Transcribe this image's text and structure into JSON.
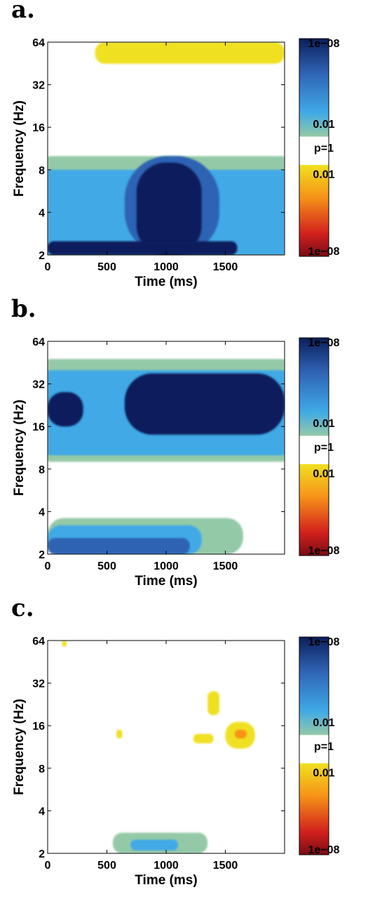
{
  "figure": {
    "panels": [
      {
        "label": "a."
      },
      {
        "label": "b."
      },
      {
        "label": "c."
      }
    ]
  },
  "colorbar": {
    "labels": [
      "1e−08",
      "0.01",
      "p=1",
      "0.01",
      "1e−08"
    ],
    "colors": {
      "dark_blue": "#0b1f5c",
      "mid_blue": "#2f63b4",
      "light_blue": "#3fa9e6",
      "green": "#94c9a7",
      "white": "#ffffff",
      "yellow": "#f0e020",
      "orange": "#f79418",
      "red": "#d2201d",
      "dark_red": "#7a0c14"
    }
  },
  "chart_data": [
    {
      "type": "heatmap",
      "title": "",
      "xlabel": "Time (ms)",
      "ylabel": "Frequency (Hz)",
      "xlim": [
        0,
        2000
      ],
      "ylim": [
        2,
        64
      ],
      "yscale": "log2",
      "xticks": [
        0,
        500,
        1000,
        1500
      ],
      "yticks": [
        2,
        4,
        8,
        16,
        32,
        64
      ],
      "colorbar": [
        "1e−08",
        "0.01",
        "p=1",
        "0.01",
        "1e−08"
      ],
      "significant_regions": [
        {
          "time": [
            0,
            2000
          ],
          "freq": [
            2,
            10
          ],
          "level": "0.01",
          "color": "green"
        },
        {
          "time": [
            0,
            2000
          ],
          "freq": [
            2,
            8
          ],
          "level": "0.001",
          "color": "light_blue"
        },
        {
          "time": [
            650,
            1450
          ],
          "freq": [
            2,
            10
          ],
          "level": "1e−5",
          "color": "mid_blue"
        },
        {
          "time": [
            750,
            1300
          ],
          "freq": [
            2,
            9
          ],
          "level": "1e−8",
          "color": "dark_blue"
        },
        {
          "time": [
            0,
            1600
          ],
          "freq": [
            2,
            2.5
          ],
          "level": "1e−8",
          "color": "dark_blue"
        },
        {
          "time": [
            400,
            2000
          ],
          "freq": [
            45,
            64
          ],
          "level": "0.01",
          "color": "yellow"
        }
      ]
    },
    {
      "type": "heatmap",
      "title": "",
      "xlabel": "Time (ms)",
      "ylabel": "Frequency (Hz)",
      "xlim": [
        0,
        2000
      ],
      "ylim": [
        2,
        64
      ],
      "yscale": "log2",
      "xticks": [
        0,
        500,
        1000,
        1500
      ],
      "yticks": [
        2,
        4,
        8,
        16,
        32,
        64
      ],
      "colorbar": [
        "1e−08",
        "0.01",
        "p=1",
        "0.01",
        "1e−08"
      ],
      "significant_regions": [
        {
          "time": [
            0,
            2000
          ],
          "freq": [
            9,
            48
          ],
          "level": "0.01",
          "color": "green"
        },
        {
          "time": [
            0,
            2000
          ],
          "freq": [
            10,
            40
          ],
          "level": "0.001",
          "color": "light_blue"
        },
        {
          "time": [
            650,
            2000
          ],
          "freq": [
            14,
            38
          ],
          "level": "1e−8",
          "color": "dark_blue"
        },
        {
          "time": [
            0,
            300
          ],
          "freq": [
            16,
            28
          ],
          "level": "1e−8",
          "color": "dark_blue"
        },
        {
          "time": [
            0,
            1650
          ],
          "freq": [
            2,
            3.6
          ],
          "level": "0.01",
          "color": "green"
        },
        {
          "time": [
            0,
            1300
          ],
          "freq": [
            2,
            3.2
          ],
          "level": "0.001",
          "color": "light_blue"
        },
        {
          "time": [
            0,
            1200
          ],
          "freq": [
            2,
            2.6
          ],
          "level": "1e−5",
          "color": "mid_blue"
        }
      ]
    },
    {
      "type": "heatmap",
      "title": "",
      "xlabel": "Time (ms)",
      "ylabel": "Frequency (Hz)",
      "xlim": [
        0,
        2000
      ],
      "ylim": [
        2,
        64
      ],
      "yscale": "log2",
      "xticks": [
        0,
        500,
        1000,
        1500
      ],
      "yticks": [
        2,
        4,
        8,
        16,
        32,
        64
      ],
      "colorbar": [
        "1e−08",
        "0.01",
        "p=1",
        "0.01",
        "1e−08"
      ],
      "significant_regions": [
        {
          "time": [
            550,
            1350
          ],
          "freq": [
            2,
            2.8
          ],
          "level": "0.01",
          "color": "green"
        },
        {
          "time": [
            700,
            1100
          ],
          "freq": [
            2.1,
            2.5
          ],
          "level": "0.001",
          "color": "light_blue"
        },
        {
          "time": [
            1500,
            1750
          ],
          "freq": [
            11,
            17
          ],
          "level": "0.01",
          "color": "yellow"
        },
        {
          "time": [
            1580,
            1680
          ],
          "freq": [
            13,
            15
          ],
          "level": "0.001",
          "color": "orange"
        },
        {
          "time": [
            1350,
            1450
          ],
          "freq": [
            19,
            28
          ],
          "level": "0.01",
          "color": "yellow"
        },
        {
          "time": [
            1230,
            1400
          ],
          "freq": [
            12,
            14
          ],
          "level": "0.01",
          "color": "yellow"
        },
        {
          "time": [
            580,
            630
          ],
          "freq": [
            13,
            15
          ],
          "level": "0.01",
          "color": "yellow"
        },
        {
          "time": [
            120,
            160
          ],
          "freq": [
            58,
            64
          ],
          "level": "0.01",
          "color": "yellow"
        }
      ]
    }
  ]
}
